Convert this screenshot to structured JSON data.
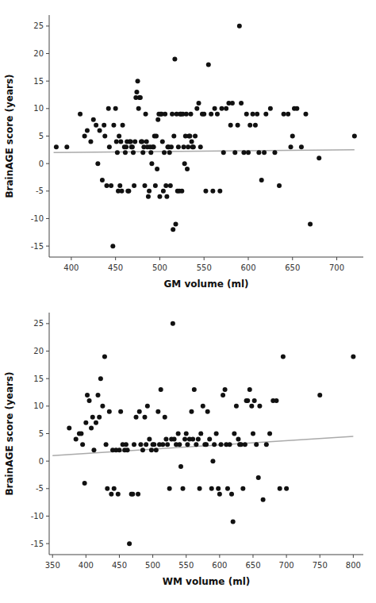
{
  "chart_data": [
    {
      "type": "scatter",
      "xlabel": "GM volume (ml)",
      "ylabel": "BrainAGE score (years)",
      "xlim": [
        375,
        730
      ],
      "xticks": [
        400,
        450,
        500,
        550,
        600,
        650,
        700
      ],
      "ylim": [
        -17,
        27
      ],
      "yticks": [
        -15,
        -10,
        -5,
        0,
        5,
        10,
        15,
        20,
        25
      ],
      "grid": false,
      "series": [
        {
          "type": "scatter",
          "color": "#111111",
          "x": [
            383,
            395,
            410,
            415,
            418,
            422,
            425,
            428,
            430,
            432,
            435,
            437,
            438,
            440,
            442,
            443,
            445,
            447,
            448,
            450,
            451,
            452,
            453,
            454,
            455,
            456,
            457,
            458,
            460,
            461,
            462,
            463,
            464,
            465,
            466,
            467,
            468,
            469,
            470,
            471,
            472,
            473,
            474,
            475,
            476,
            477,
            478,
            479,
            480,
            481,
            482,
            483,
            484,
            485,
            486,
            487,
            488,
            489,
            490,
            491,
            492,
            493,
            494,
            495,
            496,
            497,
            498,
            499,
            500,
            501,
            502,
            503,
            504,
            505,
            506,
            507,
            508,
            509,
            510,
            511,
            512,
            513,
            514,
            515,
            516,
            517,
            518,
            519,
            520,
            521,
            522,
            523,
            524,
            525,
            526,
            527,
            528,
            529,
            530,
            531,
            532,
            533,
            534,
            535,
            536,
            537,
            538,
            540,
            542,
            544,
            546,
            548,
            550,
            552,
            555,
            558,
            560,
            562,
            565,
            568,
            570,
            572,
            575,
            578,
            580,
            582,
            585,
            588,
            590,
            592,
            595,
            598,
            600,
            602,
            605,
            608,
            610,
            612,
            615,
            618,
            620,
            625,
            630,
            635,
            640,
            645,
            648,
            650,
            652,
            655,
            660,
            665,
            670,
            680,
            720
          ],
          "values": [
            3,
            3,
            9,
            5,
            6,
            4,
            8,
            7,
            0,
            6,
            -3,
            7,
            5,
            -4,
            10,
            3,
            -4,
            -15,
            7,
            10,
            4,
            2,
            -5,
            5,
            -4,
            4,
            -5,
            7,
            3,
            2,
            3,
            4,
            -5,
            -5,
            4,
            4,
            3,
            3,
            2,
            -4,
            4,
            12,
            13,
            15,
            10,
            12,
            12,
            4,
            4,
            2,
            3,
            -4,
            9,
            4,
            3,
            -6,
            -5,
            3,
            2,
            0,
            3,
            3,
            5,
            -4,
            5,
            -1,
            8,
            9,
            -6,
            9,
            9,
            4,
            -5,
            2,
            9,
            -4,
            -6,
            3,
            3,
            2,
            -4,
            3,
            9,
            -12,
            5,
            19,
            -11,
            9,
            -5,
            3,
            -5,
            9,
            9,
            -5,
            9,
            3,
            0,
            5,
            9,
            -1,
            3,
            5,
            5,
            9,
            4,
            3,
            3,
            5,
            10,
            11,
            3,
            9,
            9,
            -5,
            18,
            9,
            -5,
            10,
            9,
            -5,
            10,
            2,
            10,
            11,
            7,
            11,
            2,
            7,
            25,
            11,
            2,
            9,
            2,
            7,
            9,
            7,
            9,
            2,
            -3,
            2,
            9,
            10,
            2,
            -4,
            9,
            9,
            3,
            5,
            10,
            10,
            3,
            9,
            -11,
            1,
            5
          ]
        },
        {
          "type": "line",
          "color": "#aaaaaa",
          "x": [
            380,
            720
          ],
          "values": [
            2.0,
            2.5
          ]
        }
      ]
    },
    {
      "type": "scatter",
      "xlabel": "WM volume (ml)",
      "ylabel": "BrainAGE score (years)",
      "xlim": [
        345,
        815
      ],
      "xticks": [
        350,
        400,
        450,
        500,
        550,
        600,
        650,
        700,
        750,
        800
      ],
      "ylim": [
        -17,
        27
      ],
      "yticks": [
        -15,
        -10,
        -5,
        0,
        5,
        10,
        15,
        20,
        25
      ],
      "grid": false,
      "series": [
        {
          "type": "scatter",
          "color": "#111111",
          "x": [
            375,
            385,
            390,
            393,
            395,
            398,
            400,
            402,
            405,
            408,
            410,
            412,
            415,
            418,
            420,
            422,
            425,
            428,
            430,
            432,
            435,
            438,
            440,
            442,
            445,
            448,
            450,
            452,
            455,
            458,
            460,
            462,
            465,
            468,
            470,
            472,
            475,
            478,
            480,
            482,
            485,
            488,
            490,
            492,
            495,
            498,
            500,
            502,
            505,
            508,
            510,
            512,
            515,
            518,
            520,
            522,
            525,
            528,
            530,
            532,
            535,
            538,
            540,
            542,
            545,
            548,
            550,
            552,
            555,
            558,
            560,
            562,
            565,
            568,
            570,
            572,
            575,
            578,
            580,
            582,
            585,
            588,
            590,
            592,
            595,
            598,
            600,
            602,
            605,
            608,
            610,
            612,
            615,
            618,
            620,
            622,
            625,
            628,
            630,
            632,
            635,
            638,
            640,
            642,
            645,
            648,
            650,
            652,
            655,
            658,
            660,
            665,
            670,
            675,
            680,
            685,
            690,
            695,
            700,
            750,
            800
          ],
          "values": [
            6,
            4,
            5,
            5,
            3,
            -4,
            7,
            12,
            11,
            6,
            8,
            2,
            7,
            12,
            8,
            15,
            10,
            19,
            3,
            -5,
            9,
            -6,
            2,
            -5,
            2,
            -6,
            2,
            9,
            3,
            2,
            3,
            2,
            -15,
            -6,
            -6,
            3,
            8,
            -6,
            9,
            3,
            2,
            8,
            3,
            10,
            4,
            2,
            3,
            3,
            2,
            9,
            3,
            13,
            3,
            8,
            4,
            3,
            -5,
            4,
            25,
            4,
            3,
            5,
            3,
            -1,
            -5,
            4,
            5,
            3,
            4,
            9,
            4,
            13,
            3,
            4,
            -5,
            5,
            10,
            3,
            3,
            9,
            4,
            -5,
            0,
            3,
            5,
            -5,
            -6,
            3,
            12,
            13,
            3,
            -5,
            3,
            -6,
            -11,
            5,
            10,
            4,
            3,
            3,
            -5,
            3,
            11,
            11,
            13,
            10,
            5,
            11,
            3,
            -3,
            10,
            -7,
            3,
            5,
            11,
            11,
            -5,
            19,
            -5,
            12,
            19
          ]
        },
        {
          "type": "line",
          "color": "#aaaaaa",
          "x": [
            350,
            800
          ],
          "values": [
            1.0,
            4.5
          ]
        }
      ]
    }
  ]
}
